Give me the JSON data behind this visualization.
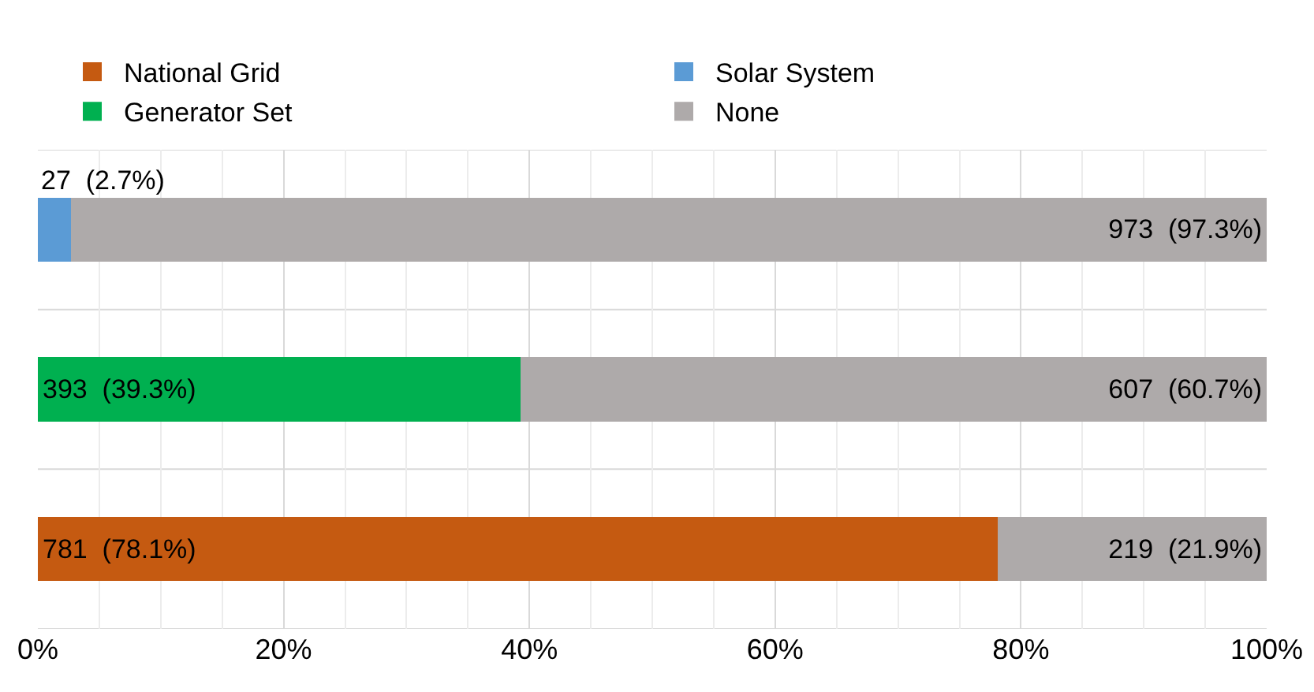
{
  "chart_data": {
    "type": "bar",
    "orientation": "horizontal",
    "stacked": true,
    "categories": [
      null,
      null,
      null
    ],
    "series": [
      {
        "name": "National Grid",
        "color": "#c55a11",
        "values": [
          null,
          null,
          78.1
        ],
        "value_labels": [
          null,
          null,
          "781  (78.1%)"
        ]
      },
      {
        "name": "Solar System",
        "color": "#5b9bd5",
        "values": [
          2.7,
          null,
          null
        ],
        "value_labels": [
          "27  (2.7%)",
          null,
          null
        ]
      },
      {
        "name": "Generator Set",
        "color": "#00b050",
        "values": [
          null,
          39.3,
          null
        ],
        "value_labels": [
          null,
          "393  (39.3%)",
          null
        ]
      },
      {
        "name": "None",
        "color": "#aeaaaa",
        "values": [
          97.3,
          60.7,
          21.9
        ],
        "value_labels": [
          "973  (97.3%)",
          "607  (60.7%)",
          "219  (21.9%)"
        ]
      }
    ],
    "xlim": [
      0,
      100
    ],
    "xticks": [
      {
        "value": 0,
        "label": "0%"
      },
      {
        "value": 20,
        "label": "20%"
      },
      {
        "value": 40,
        "label": "40%"
      },
      {
        "value": 60,
        "label": "60%"
      },
      {
        "value": 80,
        "label": "80%"
      },
      {
        "value": 100,
        "label": "100%"
      }
    ],
    "grid": true,
    "legend": "top",
    "tick_labels": "x"
  }
}
